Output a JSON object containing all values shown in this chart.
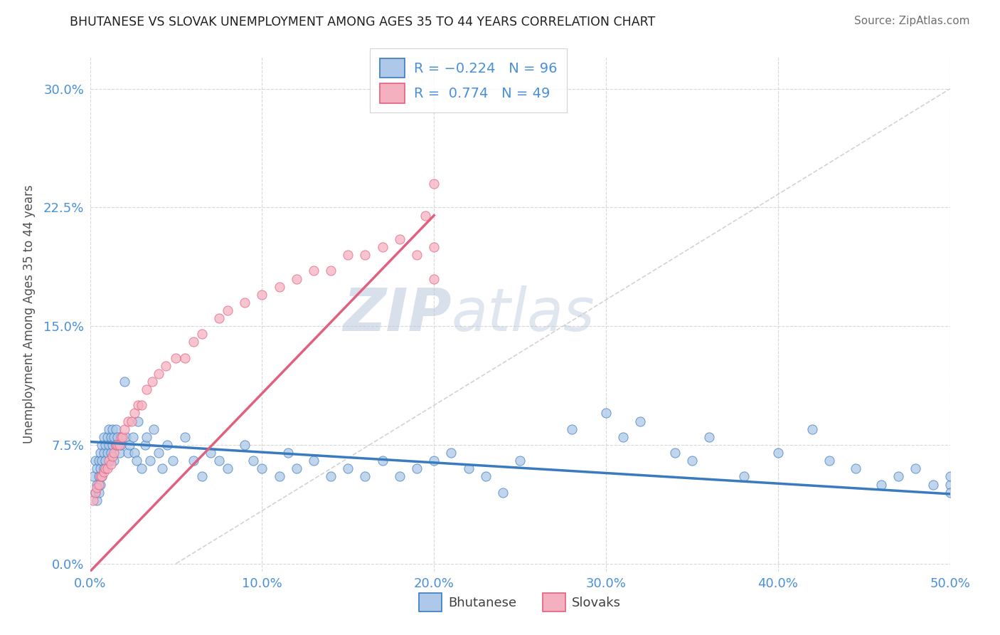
{
  "title": "BHUTANESE VS SLOVAK UNEMPLOYMENT AMONG AGES 35 TO 44 YEARS CORRELATION CHART",
  "source": "Source: ZipAtlas.com",
  "ylabel": "Unemployment Among Ages 35 to 44 years",
  "xlim": [
    0.0,
    0.5
  ],
  "ylim": [
    -0.005,
    0.32
  ],
  "xticks": [
    0.0,
    0.1,
    0.2,
    0.3,
    0.4,
    0.5
  ],
  "xticklabels": [
    "0.0%",
    "10.0%",
    "20.0%",
    "30.0%",
    "40.0%",
    "50.0%"
  ],
  "yticks": [
    0.0,
    0.075,
    0.15,
    0.225,
    0.3
  ],
  "yticklabels": [
    "0.0%",
    "7.5%",
    "15.0%",
    "22.5%",
    "30.0%"
  ],
  "bhutanese_R": -0.224,
  "bhutanese_N": 96,
  "slovak_R": 0.774,
  "slovak_N": 49,
  "bhutanese_color": "#adc8e8",
  "slovak_color": "#f5b0c0",
  "bhutanese_line_color": "#3a7bbf",
  "slovak_line_color": "#e06080",
  "diagonal_line_color": "#c8c8c8",
  "grid_color": "#d8d8d8",
  "title_color": "#202020",
  "source_color": "#707070",
  "axis_label_color": "#505050",
  "tick_color": "#4a90d9",
  "watermark_color": "#cddaec",
  "watermark_text": "ZIPatlas",
  "legend_R_color": "#4a90d9",
  "bhutanese_x": [
    0.002,
    0.003,
    0.003,
    0.004,
    0.004,
    0.004,
    0.005,
    0.005,
    0.005,
    0.006,
    0.006,
    0.006,
    0.007,
    0.007,
    0.007,
    0.008,
    0.008,
    0.008,
    0.009,
    0.009,
    0.01,
    0.01,
    0.011,
    0.011,
    0.012,
    0.012,
    0.013,
    0.013,
    0.014,
    0.014,
    0.015,
    0.015,
    0.016,
    0.017,
    0.018,
    0.02,
    0.021,
    0.022,
    0.023,
    0.025,
    0.026,
    0.027,
    0.028,
    0.03,
    0.032,
    0.033,
    0.035,
    0.037,
    0.04,
    0.042,
    0.045,
    0.048,
    0.055,
    0.06,
    0.065,
    0.07,
    0.075,
    0.08,
    0.09,
    0.095,
    0.1,
    0.11,
    0.115,
    0.12,
    0.13,
    0.14,
    0.15,
    0.16,
    0.17,
    0.18,
    0.19,
    0.2,
    0.21,
    0.22,
    0.23,
    0.24,
    0.25,
    0.28,
    0.3,
    0.31,
    0.32,
    0.34,
    0.35,
    0.36,
    0.38,
    0.4,
    0.42,
    0.43,
    0.445,
    0.46,
    0.47,
    0.48,
    0.49,
    0.5,
    0.5,
    0.5
  ],
  "bhutanese_y": [
    0.055,
    0.065,
    0.045,
    0.06,
    0.05,
    0.04,
    0.065,
    0.055,
    0.045,
    0.07,
    0.06,
    0.05,
    0.075,
    0.065,
    0.055,
    0.08,
    0.07,
    0.06,
    0.075,
    0.065,
    0.08,
    0.07,
    0.085,
    0.075,
    0.08,
    0.07,
    0.085,
    0.075,
    0.08,
    0.065,
    0.085,
    0.075,
    0.08,
    0.07,
    0.075,
    0.115,
    0.08,
    0.07,
    0.075,
    0.08,
    0.07,
    0.065,
    0.09,
    0.06,
    0.075,
    0.08,
    0.065,
    0.085,
    0.07,
    0.06,
    0.075,
    0.065,
    0.08,
    0.065,
    0.055,
    0.07,
    0.065,
    0.06,
    0.075,
    0.065,
    0.06,
    0.055,
    0.07,
    0.06,
    0.065,
    0.055,
    0.06,
    0.055,
    0.065,
    0.055,
    0.06,
    0.065,
    0.07,
    0.06,
    0.055,
    0.045,
    0.065,
    0.085,
    0.095,
    0.08,
    0.09,
    0.07,
    0.065,
    0.08,
    0.055,
    0.07,
    0.085,
    0.065,
    0.06,
    0.05,
    0.055,
    0.06,
    0.05,
    0.05,
    0.055,
    0.045
  ],
  "slovak_x": [
    0.002,
    0.003,
    0.004,
    0.005,
    0.006,
    0.007,
    0.008,
    0.009,
    0.01,
    0.011,
    0.012,
    0.013,
    0.014,
    0.015,
    0.016,
    0.017,
    0.018,
    0.019,
    0.02,
    0.022,
    0.024,
    0.026,
    0.028,
    0.03,
    0.033,
    0.036,
    0.04,
    0.044,
    0.05,
    0.055,
    0.06,
    0.065,
    0.075,
    0.08,
    0.09,
    0.1,
    0.11,
    0.12,
    0.13,
    0.14,
    0.15,
    0.16,
    0.17,
    0.18,
    0.19,
    0.195,
    0.2,
    0.2,
    0.2
  ],
  "slovak_y": [
    0.04,
    0.045,
    0.048,
    0.05,
    0.055,
    0.055,
    0.058,
    0.06,
    0.06,
    0.065,
    0.063,
    0.068,
    0.07,
    0.075,
    0.075,
    0.075,
    0.08,
    0.08,
    0.085,
    0.09,
    0.09,
    0.095,
    0.1,
    0.1,
    0.11,
    0.115,
    0.12,
    0.125,
    0.13,
    0.13,
    0.14,
    0.145,
    0.155,
    0.16,
    0.165,
    0.17,
    0.175,
    0.18,
    0.185,
    0.185,
    0.195,
    0.195,
    0.2,
    0.205,
    0.195,
    0.22,
    0.2,
    0.18,
    0.24
  ]
}
